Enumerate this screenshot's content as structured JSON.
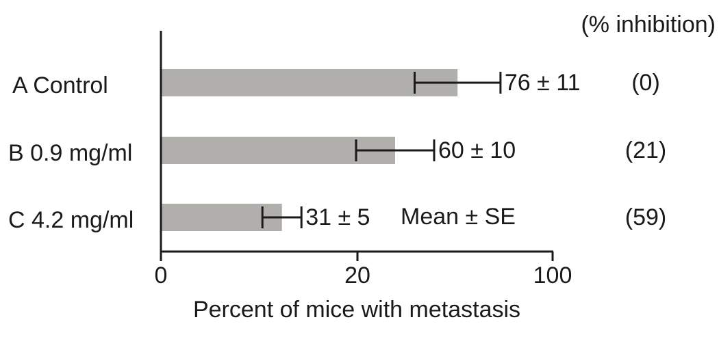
{
  "chart_data": {
    "type": "bar",
    "orientation": "horizontal",
    "categories": [
      "A Control",
      "B 0.9 mg/ml",
      "C 4.2 mg/ml"
    ],
    "values": [
      76,
      60,
      31
    ],
    "errors": [
      11,
      10,
      5
    ],
    "value_labels": [
      "76 ± 11",
      "60 ± 10",
      "31 ± 5"
    ],
    "inhibition_header": "(% inhibition)",
    "inhibition_labels": [
      "(0)",
      "(21)",
      "(59)"
    ],
    "annotation": "Mean ± SE",
    "xlabel": "Percent of mice with metastasis",
    "x_tick_labels": [
      "0",
      "20",
      "100"
    ],
    "grid": false,
    "colors": {
      "bar": "#b0afab",
      "axis": "#1a1a1a"
    }
  }
}
